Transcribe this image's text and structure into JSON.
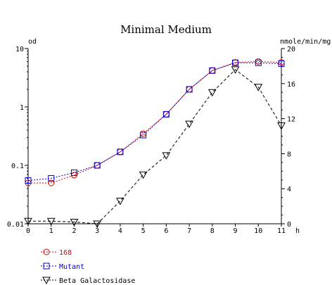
{
  "chart_data": {
    "type": "line",
    "title": "Minimal Medium",
    "xlabel": "h",
    "ylabel_left": "od",
    "ylabel_right": "nmole/min/mg",
    "x": [
      0,
      1,
      2,
      3,
      4,
      5,
      6,
      7,
      8,
      9,
      10,
      11
    ],
    "x_ticks": [
      "0",
      "1",
      "2",
      "3",
      "4",
      "5",
      "6",
      "7",
      "8",
      "9",
      "10",
      "11"
    ],
    "xlim": [
      0,
      11
    ],
    "left_axis": {
      "scale": "log",
      "ylim": [
        0.01,
        10
      ],
      "ticks": [
        0.01,
        0.1,
        1,
        10
      ],
      "tick_labels": [
        "0.01",
        "0.1",
        "1",
        "10"
      ]
    },
    "right_axis": {
      "scale": "linear",
      "ylim": [
        0,
        20
      ],
      "ticks": [
        0,
        4,
        8,
        12,
        16,
        20
      ],
      "tick_labels": [
        "0",
        "4",
        "8",
        "12",
        "16",
        "20"
      ]
    },
    "series": [
      {
        "name": "168",
        "axis": "left",
        "marker": "circle",
        "color": "#dd0000",
        "linestyle": "dotted",
        "values": [
          0.05,
          0.05,
          0.068,
          0.1,
          0.17,
          0.35,
          0.75,
          2.0,
          4.2,
          5.8,
          6.0,
          5.8
        ]
      },
      {
        "name": "Mutant",
        "axis": "left",
        "marker": "square",
        "color": "#0000cc",
        "linestyle": "dotted",
        "values": [
          0.055,
          0.06,
          0.075,
          0.1,
          0.17,
          0.33,
          0.75,
          2.0,
          4.2,
          5.7,
          5.7,
          5.5
        ]
      },
      {
        "name": "Beta Galactosidase",
        "axis": "right",
        "marker": "triangle-down",
        "color": "#000000",
        "linestyle": "dashed",
        "values": [
          0.3,
          0.3,
          0.2,
          0.0,
          2.6,
          5.6,
          7.8,
          11.4,
          15.0,
          17.6,
          15.6,
          11.2
        ]
      }
    ],
    "legend_position": "bottom-left"
  }
}
